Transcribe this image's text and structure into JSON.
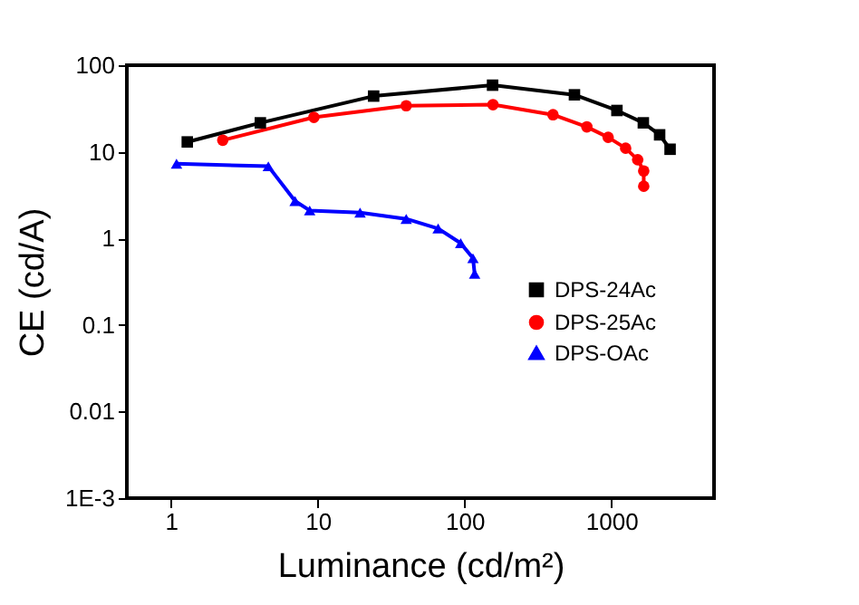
{
  "chart_data": {
    "type": "line",
    "xlabel": "Luminance (cd/m²)",
    "ylabel": "CE (cd/A)",
    "log": "xy",
    "grid": false,
    "legend": "right",
    "xlim": [
      0.5,
      5000
    ],
    "xticks": [
      1,
      10,
      100,
      1000
    ],
    "ylim": [
      0.001,
      100
    ],
    "yticks": [
      {
        "value": 0.001,
        "label": "1E-3"
      },
      0.01,
      0.1,
      1,
      10,
      100
    ],
    "series": [
      {
        "name": "DPS-24Ac",
        "color": "#000000",
        "marker": "square",
        "x": [
          1.29,
          4.06,
          24,
          155,
          560,
          1090,
          1650,
          2130,
          2510
        ],
        "values": [
          13,
          21.6,
          44,
          58.8,
          45.5,
          30,
          21.6,
          15.7,
          10.7
        ]
      },
      {
        "name": "DPS-25Ac",
        "color": "#ff0000",
        "marker": "circle",
        "x": [
          2.25,
          9.4,
          40,
          156,
          400,
          680,
          950,
          1250,
          1510,
          1660,
          1660
        ],
        "values": [
          13.6,
          25,
          34,
          35,
          26.8,
          19.4,
          14.7,
          11,
          8.1,
          6,
          4
        ]
      },
      {
        "name": "DPS-OAc",
        "color": "#0000ff",
        "marker": "triangle",
        "x": [
          1.09,
          4.6,
          7,
          8.8,
          19.4,
          40,
          66,
          94,
          114,
          117
        ],
        "values": [
          7.3,
          6.8,
          2.7,
          2.1,
          1.98,
          1.68,
          1.3,
          0.88,
          0.59,
          0.39
        ]
      }
    ]
  }
}
